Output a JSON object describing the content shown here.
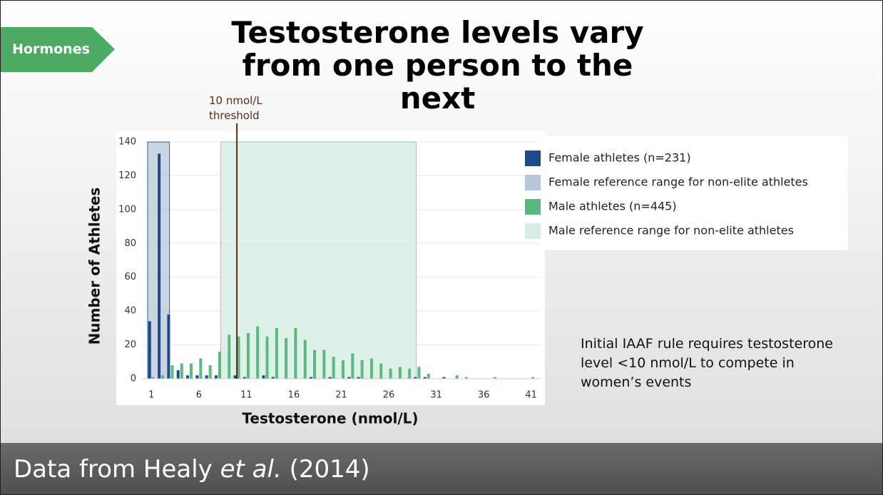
{
  "header": {
    "tag": "Hormones",
    "title": "Testosterone levels vary from one person to the next"
  },
  "chart_data": {
    "type": "bar",
    "x_label": "Testosterone (nmol/L)",
    "y_label": "Number of Athletes",
    "x": [
      1,
      2,
      3,
      4,
      5,
      6,
      7,
      8,
      9,
      10,
      11,
      12,
      13,
      14,
      15,
      16,
      17,
      18,
      19,
      20,
      21,
      22,
      23,
      24,
      25,
      26,
      27,
      28,
      29,
      30,
      31,
      32,
      33,
      34,
      35,
      36,
      37,
      38,
      39,
      40,
      41
    ],
    "series": [
      {
        "name": "Female athletes (n=231)",
        "color": "#1f4a8a",
        "values": [
          34,
          133,
          38,
          5,
          2,
          2,
          2,
          2,
          0,
          2,
          1,
          0,
          2,
          1,
          0,
          0,
          0,
          1,
          0,
          1,
          0,
          1,
          1,
          0,
          0,
          0,
          0,
          0,
          1,
          1,
          0,
          1,
          0,
          0,
          0,
          0,
          0,
          0,
          0,
          0,
          0
        ]
      },
      {
        "name": "Male athletes (n=445)",
        "color": "#5cb87f",
        "values": [
          1,
          2,
          8,
          9,
          9,
          12,
          8,
          16,
          26,
          25,
          27,
          31,
          25,
          30,
          24,
          30,
          23,
          17,
          17,
          13,
          11,
          15,
          11,
          12,
          9,
          6,
          7,
          6,
          7,
          3,
          0,
          0,
          2,
          1,
          0,
          0,
          1,
          0,
          0,
          0,
          1
        ]
      }
    ],
    "ranges": [
      {
        "name": "Female reference range for non-elite athletes",
        "color": "#b8c6da",
        "x": [
          0.6,
          2.9
        ]
      },
      {
        "name": "Male reference range for non-elite athletes",
        "color": "#d6ede4",
        "x": [
          8.3,
          28.9
        ]
      }
    ],
    "threshold": {
      "label": "10 nmol/L threshold",
      "x": 10
    },
    "xlim": [
      0,
      42
    ],
    "xticks": [
      1,
      6,
      11,
      16,
      21,
      26,
      31,
      36,
      41
    ],
    "ylim": [
      0,
      140
    ],
    "yticks": [
      0,
      20,
      40,
      60,
      80,
      100,
      120,
      140
    ],
    "grid": true
  },
  "note": "Initial IAAF rule requires testosterone level <10 nmol/L to compete in women’s events",
  "footer": [
    "Data from Healy ",
    "et al.",
    " (2014)"
  ]
}
